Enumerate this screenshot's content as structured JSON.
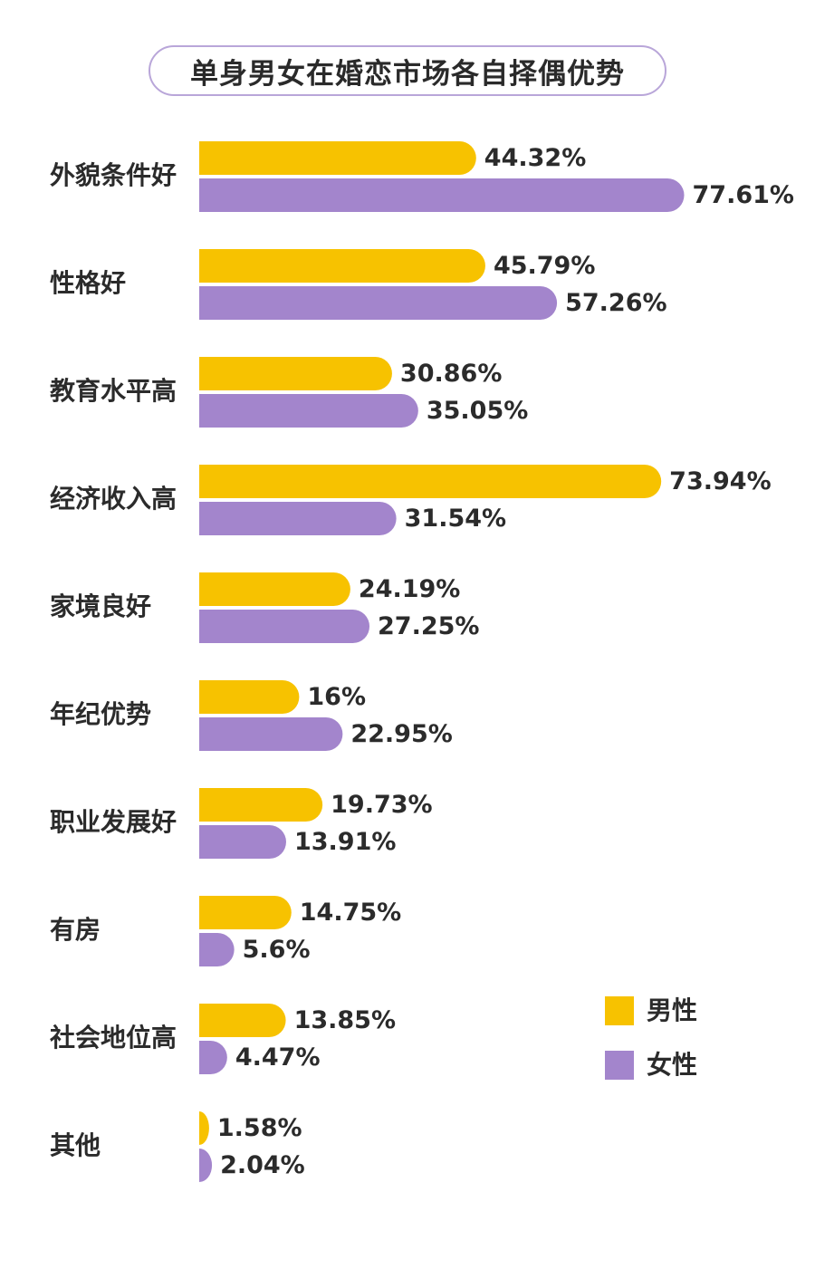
{
  "chart_data": {
    "type": "bar",
    "orientation": "horizontal",
    "title": "单身男女在婚恋市场各自择偶优势",
    "categories": [
      "外貌条件好",
      "性格好",
      "教育水平高",
      "经济收入高",
      "家境良好",
      "年纪优势",
      "职业发展好",
      "有房",
      "社会地位高",
      "其他"
    ],
    "series": [
      {
        "name": "男性",
        "color": "#f7c200",
        "values": [
          44.32,
          45.79,
          30.86,
          73.94,
          24.19,
          16,
          19.73,
          14.75,
          13.85,
          1.58
        ],
        "labels": [
          "44.32%",
          "45.79%",
          "30.86%",
          "73.94%",
          "24.19%",
          "16%",
          "19.73%",
          "14.75%",
          "13.85%",
          "1.58%"
        ]
      },
      {
        "name": "女性",
        "color": "#a385cc",
        "values": [
          77.61,
          57.26,
          35.05,
          31.54,
          27.25,
          22.95,
          13.91,
          5.6,
          4.47,
          2.04
        ],
        "labels": [
          "77.61%",
          "57.26%",
          "35.05%",
          "31.54%",
          "27.25%",
          "22.95%",
          "13.91%",
          "5.6%",
          "4.47%",
          "2.04%"
        ]
      }
    ],
    "xlim": [
      0,
      80
    ],
    "grid": false,
    "legend": "right"
  }
}
